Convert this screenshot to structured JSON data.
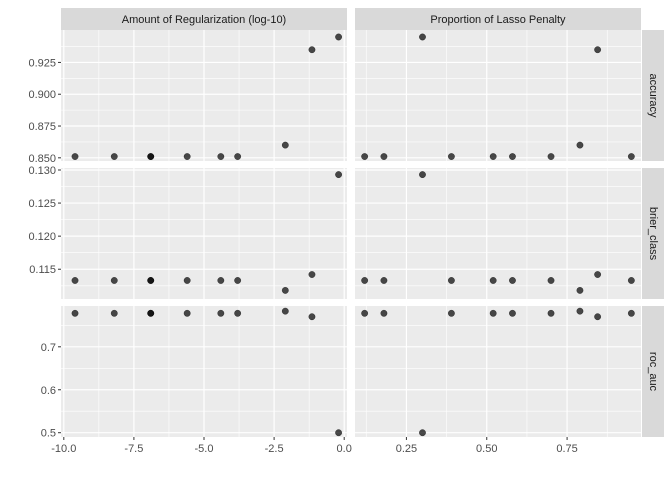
{
  "chart_data": {
    "type": "scatter",
    "layout": "facet_grid",
    "facet_cols": [
      {
        "label": "Amount of Regularization (log-10)",
        "xlim": [
          -10.1,
          0.1
        ],
        "xticks": [
          -10,
          -7.5,
          -5,
          -2.5,
          0
        ],
        "xtick_labels": [
          "-10.0",
          "-7.5",
          "-5.0",
          "-2.5",
          "0.0"
        ]
      },
      {
        "label": "Proportion of Lasso Penalty",
        "xlim": [
          0.09,
          0.98
        ],
        "xticks": [
          0.25,
          0.5,
          0.75
        ],
        "xtick_labels": [
          "0.25",
          "0.50",
          "0.75"
        ]
      }
    ],
    "facet_rows": [
      {
        "label": "accuracy",
        "ylim": [
          0.8475,
          0.9505
        ],
        "yticks": [
          0.85,
          0.875,
          0.9,
          0.925
        ],
        "ytick_labels": [
          "0.850",
          "0.875",
          "0.900",
          "0.925"
        ]
      },
      {
        "label": "brier_class",
        "ylim": [
          0.1105,
          0.1303
        ],
        "yticks": [
          0.115,
          0.12,
          0.125,
          0.13
        ],
        "ytick_labels": [
          "0.115",
          "0.120",
          "0.125",
          "0.130"
        ]
      },
      {
        "label": "roc_auc",
        "ylim": [
          0.49,
          0.795
        ],
        "yticks": [
          0.5,
          0.6,
          0.7
        ],
        "ytick_labels": [
          "0.5",
          "0.6",
          "0.7"
        ]
      }
    ],
    "points": [
      {
        "reg": -9.6,
        "lasso": 0.58,
        "accuracy": 0.851,
        "brier_class": 0.1133,
        "roc_auc": 0.778
      },
      {
        "reg": -8.2,
        "lasso": 0.52,
        "accuracy": 0.851,
        "brier_class": 0.1133,
        "roc_auc": 0.778
      },
      {
        "reg": -6.9,
        "lasso": 0.95,
        "accuracy": 0.851,
        "brier_class": 0.1133,
        "roc_auc": 0.778
      },
      {
        "reg": -6.9,
        "lasso": 0.7,
        "accuracy": 0.851,
        "brier_class": 0.1133,
        "roc_auc": 0.778
      },
      {
        "reg": -5.6,
        "lasso": 0.12,
        "accuracy": 0.851,
        "brier_class": 0.1133,
        "roc_auc": 0.778
      },
      {
        "reg": -4.4,
        "lasso": 0.39,
        "accuracy": 0.851,
        "brier_class": 0.1133,
        "roc_auc": 0.778
      },
      {
        "reg": -3.8,
        "lasso": 0.18,
        "accuracy": 0.851,
        "brier_class": 0.1133,
        "roc_auc": 0.778
      },
      {
        "reg": -2.1,
        "lasso": 0.79,
        "accuracy": 0.86,
        "brier_class": 0.1118,
        "roc_auc": 0.783
      },
      {
        "reg": -1.15,
        "lasso": 0.845,
        "accuracy": 0.935,
        "brier_class": 0.1142,
        "roc_auc": 0.77
      },
      {
        "reg": -0.2,
        "lasso": 0.3,
        "accuracy": 0.945,
        "brier_class": 0.1293,
        "roc_auc": 0.5
      }
    ]
  }
}
